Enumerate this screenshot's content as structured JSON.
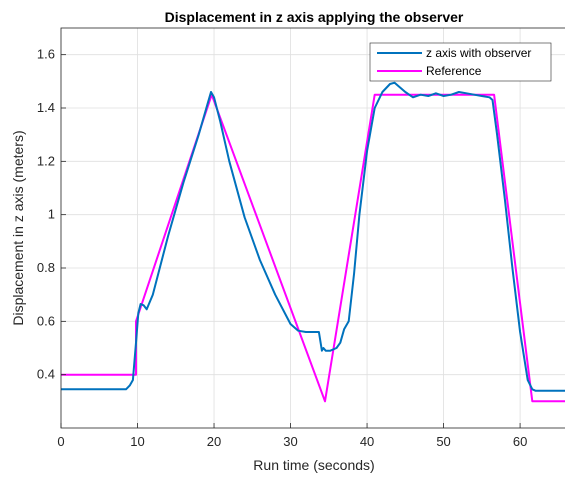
{
  "chart_data": {
    "type": "line",
    "title": "Displacement in z axis applying the observer",
    "xlabel": "Run time (seconds)",
    "ylabel": "Displacement in z axis (meters)",
    "xlim": [
      0,
      66
    ],
    "ylim": [
      0.2,
      1.7
    ],
    "xticks": [
      0,
      10,
      20,
      30,
      40,
      50,
      60
    ],
    "yticks": [
      0.4,
      0.6,
      0.8,
      1.0,
      1.2,
      1.4,
      1.6
    ],
    "ytick_labels": [
      "0.4",
      "0.6",
      "0.8",
      "1",
      "1.2",
      "1.4",
      "1.6"
    ],
    "grid": true,
    "legend": {
      "position": "top-right"
    },
    "series": [
      {
        "name": "z axis with observer",
        "color": "#0072BD",
        "x": [
          0,
          8.5,
          9.0,
          9.4,
          9.8,
          10.1,
          10.4,
          10.8,
          11.2,
          12,
          14,
          16,
          18,
          19.2,
          19.6,
          20.0,
          20.8,
          22,
          24,
          26,
          28,
          30,
          31,
          32,
          33,
          33.7,
          34.1,
          34.3,
          34.6,
          35.2,
          36.0,
          36.5,
          37.0,
          37.6,
          38.3,
          39,
          40,
          41,
          42,
          43,
          43.6,
          44.2,
          45,
          46,
          47,
          48,
          49,
          50,
          51,
          52,
          53,
          54,
          55,
          56,
          56.4,
          57,
          58,
          59,
          60,
          61,
          61.6,
          62,
          63,
          66
        ],
        "y": [
          0.345,
          0.345,
          0.36,
          0.38,
          0.52,
          0.63,
          0.665,
          0.66,
          0.645,
          0.7,
          0.92,
          1.12,
          1.3,
          1.42,
          1.46,
          1.44,
          1.35,
          1.2,
          0.99,
          0.83,
          0.7,
          0.59,
          0.565,
          0.56,
          0.56,
          0.56,
          0.49,
          0.5,
          0.49,
          0.49,
          0.5,
          0.52,
          0.57,
          0.6,
          0.78,
          1.0,
          1.24,
          1.4,
          1.46,
          1.49,
          1.495,
          1.48,
          1.46,
          1.44,
          1.45,
          1.445,
          1.455,
          1.445,
          1.45,
          1.46,
          1.455,
          1.45,
          1.445,
          1.44,
          1.43,
          1.3,
          1.06,
          0.8,
          0.56,
          0.38,
          0.345,
          0.34,
          0.34,
          0.34
        ]
      },
      {
        "name": "Reference",
        "color": "#FF00FF",
        "x": [
          0,
          9.8,
          9.8,
          19.7,
          34.5,
          41.0,
          56.6,
          61.6,
          66
        ],
        "y": [
          0.4,
          0.4,
          0.6,
          1.45,
          0.3,
          1.45,
          1.45,
          0.3,
          0.3
        ]
      }
    ]
  }
}
